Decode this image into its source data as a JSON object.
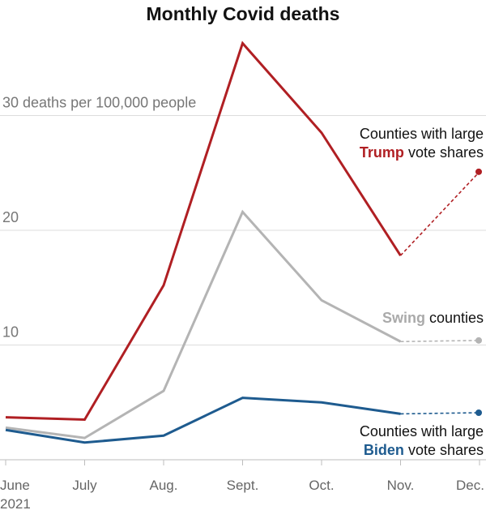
{
  "title": "Monthly Covid deaths",
  "chart_data": {
    "type": "line",
    "title": "Monthly Covid deaths",
    "x": [
      "June",
      "July",
      "Aug.",
      "Sept.",
      "Oct.",
      "Nov.",
      "Dec."
    ],
    "x_sublabel": "2021",
    "ylim": [
      0,
      37
    ],
    "yticks": [
      10,
      20,
      30
    ],
    "ytick_labels": [
      "10",
      "20",
      "30 deaths per 100,000 people"
    ],
    "grid": "horizontal",
    "series": [
      {
        "name": "Counties with large Trump vote shares",
        "color": "#b01f23",
        "values": [
          3.7,
          3.5,
          15.2,
          36.3,
          28.5,
          17.8,
          25.1
        ],
        "dashed_from_index": 5
      },
      {
        "name": "Swing counties",
        "color": "#b4b4b4",
        "values": [
          2.8,
          1.9,
          6.0,
          21.6,
          13.9,
          10.3,
          10.4
        ],
        "dashed_from_index": 5
      },
      {
        "name": "Counties with large Biden vote shares",
        "color": "#1e5b8f",
        "values": [
          2.6,
          1.5,
          2.1,
          5.4,
          5.0,
          4.0,
          4.1
        ],
        "dashed_from_index": 5
      }
    ],
    "annotations": {
      "trump": {
        "line1": "Counties with large",
        "highlight": "Trump",
        "rest": " vote shares"
      },
      "swing": {
        "highlight": "Swing",
        "rest": " counties"
      },
      "biden": {
        "line1": "Counties with large",
        "highlight": "Biden",
        "rest": " vote shares"
      }
    }
  }
}
